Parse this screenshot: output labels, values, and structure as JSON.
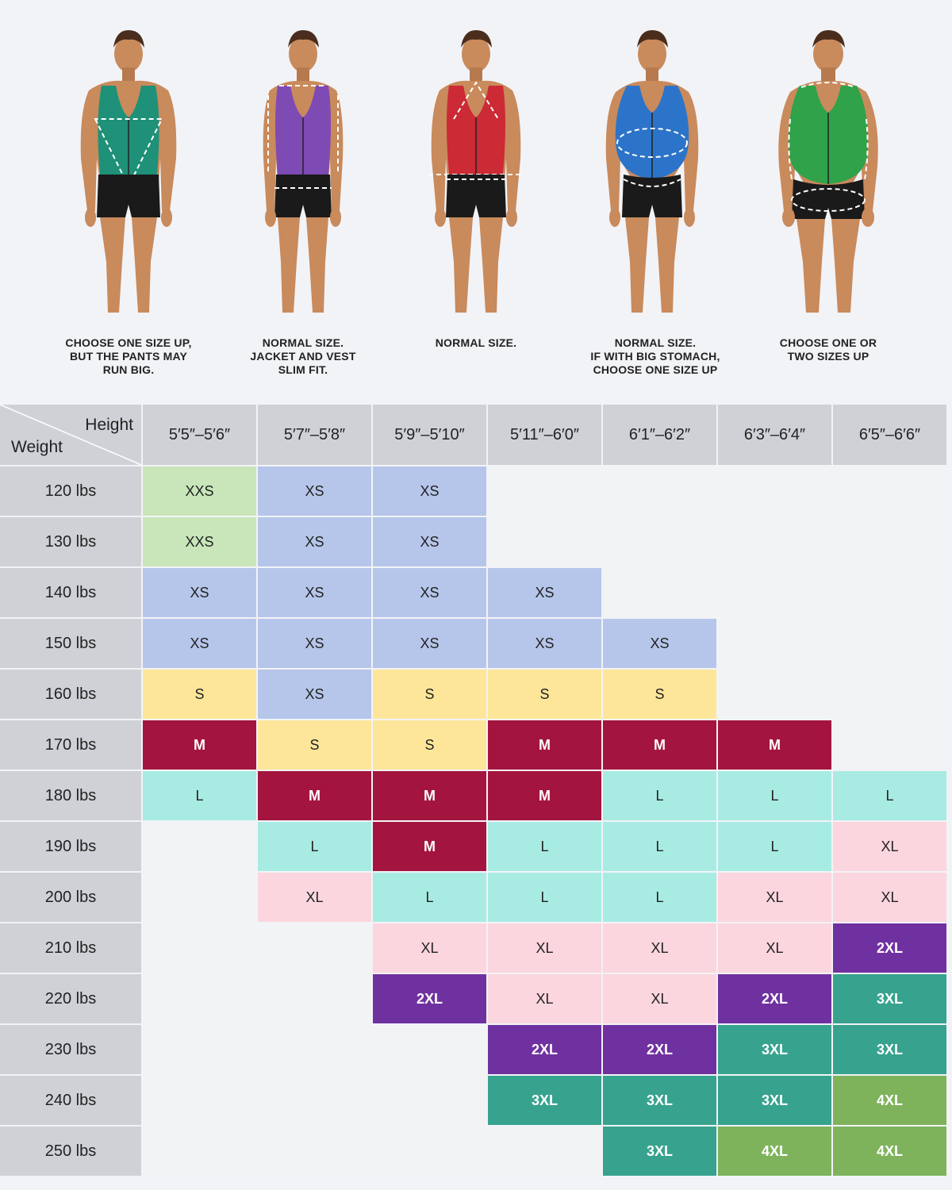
{
  "figures": [
    {
      "vest_color": "#1e9178",
      "caption": [
        "CHOOSE ONE SIZE UP,",
        "BUT THE PANTS MAY",
        "RUN BIG."
      ]
    },
    {
      "vest_color": "#7d4bb3",
      "caption": [
        "NORMAL SIZE.",
        "JACKET AND VEST",
        "SLIM FIT."
      ]
    },
    {
      "vest_color": "#cc2a35",
      "caption": [
        "NORMAL SIZE."
      ]
    },
    {
      "vest_color": "#2c74c9",
      "caption": [
        "NORMAL SIZE.",
        "IF WITH BIG STOMACH,",
        "CHOOSE ONE SIZE UP"
      ]
    },
    {
      "vest_color": "#2fa24a",
      "caption": [
        "CHOOSE ONE OR",
        "TWO SIZES UP"
      ]
    }
  ],
  "table": {
    "corner_height_label": "Height",
    "corner_weight_label": "Weight",
    "heights": [
      "5′5″–5′6″",
      "5′7″–5′8″",
      "5′9″–5′10″",
      "5′11″–6′0″",
      "6′1″–6′2″",
      "6′3″–6′4″",
      "6′5″–6′6″"
    ],
    "rows": [
      {
        "weight": "120 lbs",
        "sizes": [
          "XXS",
          "XS",
          "XS",
          "",
          "",
          "",
          ""
        ]
      },
      {
        "weight": "130 lbs",
        "sizes": [
          "XXS",
          "XS",
          "XS",
          "",
          "",
          "",
          ""
        ]
      },
      {
        "weight": "140 lbs",
        "sizes": [
          "XS",
          "XS",
          "XS",
          "XS",
          "",
          "",
          ""
        ]
      },
      {
        "weight": "150 lbs",
        "sizes": [
          "XS",
          "XS",
          "XS",
          "XS",
          "XS",
          "",
          ""
        ]
      },
      {
        "weight": "160 lbs",
        "sizes": [
          "S",
          "XS",
          "S",
          "S",
          "S",
          "",
          ""
        ]
      },
      {
        "weight": "170 lbs",
        "sizes": [
          "M",
          "S",
          "S",
          "M",
          "M",
          "M",
          ""
        ]
      },
      {
        "weight": "180 lbs",
        "sizes": [
          "L",
          "M",
          "M",
          "M",
          "L",
          "L",
          "L"
        ]
      },
      {
        "weight": "190 lbs",
        "sizes": [
          "",
          "L",
          "M",
          "L",
          "L",
          "L",
          "XL"
        ]
      },
      {
        "weight": "200 lbs",
        "sizes": [
          "",
          "XL",
          "L",
          "L",
          "L",
          "XL",
          "XL"
        ]
      },
      {
        "weight": "210 lbs",
        "sizes": [
          "",
          "",
          "XL",
          "XL",
          "XL",
          "XL",
          "2XL"
        ]
      },
      {
        "weight": "220 lbs",
        "sizes": [
          "",
          "",
          "2XL",
          "XL",
          "XL",
          "2XL",
          "3XL"
        ]
      },
      {
        "weight": "230 lbs",
        "sizes": [
          "",
          "",
          "",
          "2XL",
          "2XL",
          "3XL",
          "3XL"
        ]
      },
      {
        "weight": "240 lbs",
        "sizes": [
          "",
          "",
          "",
          "3XL",
          "3XL",
          "3XL",
          "4XL"
        ]
      },
      {
        "weight": "250 lbs",
        "sizes": [
          "",
          "",
          "",
          "",
          "3XL",
          "4XL",
          "4XL"
        ]
      }
    ],
    "size_colors": {
      "XXS": "#c8e6b9",
      "XS": "#b6c6ea",
      "S": "#fde699",
      "M": "#a3153f",
      "L": "#a8ebe2",
      "XL": "#fbd6de",
      "2XL": "#7031a0",
      "3XL": "#37a38e",
      "4XL": "#7eb35c"
    }
  }
}
